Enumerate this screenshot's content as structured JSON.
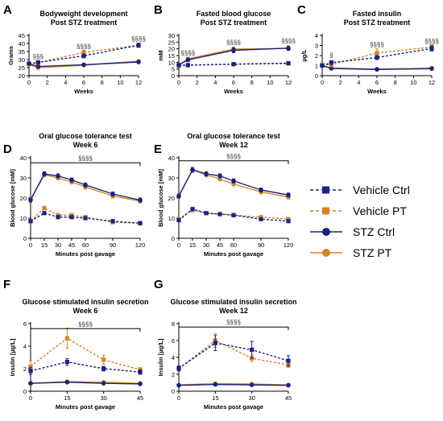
{
  "legend": {
    "entries": [
      {
        "name": "Vehicle Ctrl",
        "color": "#1a237e",
        "marker": "square",
        "dashed": true
      },
      {
        "name": "Vehicle PT",
        "color": "#d4862a",
        "marker": "square",
        "dashed": true
      },
      {
        "name": "STZ Ctrl",
        "color": "#1a237e",
        "marker": "circle",
        "dashed": false
      },
      {
        "name": "STZ PT",
        "color": "#d4862a",
        "marker": "circle",
        "dashed": false
      }
    ]
  },
  "chart_data": [
    {
      "panel": "A",
      "type": "line",
      "title": [
        "Bodyweight development",
        "Post STZ treatment"
      ],
      "xlabel": "Weeks",
      "ylabel": "Grams",
      "xlim": [
        0,
        12
      ],
      "ylim": [
        20,
        45
      ],
      "xticks": [
        0,
        2,
        4,
        6,
        8,
        10,
        12
      ],
      "yticks": [
        20,
        25,
        30,
        35,
        40,
        45
      ],
      "x": [
        0,
        1,
        6,
        12
      ],
      "series": [
        {
          "name": "Vehicle Ctrl",
          "values": [
            27.5,
            28.3,
            32.3,
            38.9
          ],
          "err": [
            0.8,
            0.8,
            1.2,
            1.3
          ]
        },
        {
          "name": "Vehicle PT",
          "values": [
            27.3,
            28.1,
            34.5,
            38.8
          ],
          "err": [
            0.7,
            0.7,
            1.3,
            1.0
          ]
        },
        {
          "name": "STZ Ctrl",
          "values": [
            27.5,
            25.7,
            26.8,
            28.5
          ],
          "err": [
            0.6,
            0.6,
            0.7,
            0.9
          ]
        },
        {
          "name": "STZ PT",
          "values": [
            27.0,
            24.9,
            26.5,
            29.0
          ],
          "err": [
            0.6,
            0.6,
            0.7,
            0.9
          ]
        }
      ],
      "annotations": [
        {
          "text": "§§§",
          "x": 1,
          "y": 30.5
        },
        {
          "text": "§§§§",
          "x": 6,
          "y": 36.8
        },
        {
          "text": "§§§§",
          "x": 12,
          "y": 41.5
        }
      ]
    },
    {
      "panel": "B",
      "type": "line",
      "title": [
        "Fasted blood glucose",
        "Post STZ treatment"
      ],
      "xlabel": "Weeks",
      "ylabel": "mM",
      "xlim": [
        0,
        12
      ],
      "ylim": [
        0,
        30
      ],
      "xticks": [
        0,
        2,
        4,
        6,
        8,
        10,
        12
      ],
      "yticks": [
        0,
        5,
        10,
        15,
        20,
        25,
        30
      ],
      "x": [
        0,
        1,
        6,
        12
      ],
      "series": [
        {
          "name": "Vehicle Ctrl",
          "values": [
            7.8,
            7.9,
            8.6,
            9.3
          ],
          "err": [
            0.3,
            0.3,
            0.3,
            0.4
          ]
        },
        {
          "name": "Vehicle PT",
          "values": [
            7.5,
            7.7,
            8.5,
            9.0
          ],
          "err": [
            0.3,
            0.3,
            0.3,
            0.4
          ]
        },
        {
          "name": "STZ Ctrl",
          "values": [
            8.0,
            11.8,
            18.9,
            20.5
          ],
          "err": [
            0.4,
            1.3,
            1.8,
            1.6
          ]
        },
        {
          "name": "STZ PT",
          "values": [
            8.0,
            12.5,
            19.8,
            20.3
          ],
          "err": [
            0.4,
            1.3,
            1.6,
            1.6
          ]
        }
      ],
      "annotations": [
        {
          "text": "§§§§",
          "x": 1,
          "y": 15.2
        },
        {
          "text": "§§§§",
          "x": 6,
          "y": 23.2
        },
        {
          "text": "§§§§",
          "x": 12,
          "y": 24.2
        }
      ]
    },
    {
      "panel": "C",
      "type": "line",
      "title": [
        "Fasted insulin",
        "Post STZ treatment"
      ],
      "xlabel": "Weeks",
      "ylabel": "µg/L",
      "xlim": [
        0,
        12
      ],
      "ylim": [
        0,
        4
      ],
      "xticks": [
        0,
        2,
        4,
        6,
        8,
        10,
        12
      ],
      "yticks": [
        0,
        1,
        2,
        3,
        4
      ],
      "x": [
        0,
        1,
        6,
        12
      ],
      "series": [
        {
          "name": "Vehicle Ctrl",
          "values": [
            1.0,
            1.3,
            1.8,
            2.7
          ],
          "err": [
            0.15,
            0.2,
            0.2,
            0.25
          ]
        },
        {
          "name": "Vehicle PT",
          "values": [
            1.1,
            1.1,
            2.25,
            2.85
          ],
          "err": [
            0.15,
            0.2,
            0.4,
            0.25
          ]
        },
        {
          "name": "STZ Ctrl",
          "values": [
            1.0,
            0.72,
            0.62,
            0.7
          ],
          "err": [
            0.05,
            0.05,
            0.05,
            0.05
          ]
        },
        {
          "name": "STZ PT",
          "values": [
            1.05,
            0.75,
            0.65,
            0.75
          ],
          "err": [
            0.05,
            0.05,
            0.05,
            0.05
          ]
        }
      ],
      "annotations": [
        {
          "text": "§",
          "x": 1,
          "y": 1.8
        },
        {
          "text": "§§§§",
          "x": 6,
          "y": 2.9
        },
        {
          "text": "§§§§",
          "x": 12,
          "y": 3.2
        }
      ]
    },
    {
      "panel": "D",
      "type": "line",
      "title": [
        "Oral glucose tolerance test",
        "Week 6"
      ],
      "xlabel": "Minutes post gavage",
      "ylabel": "Blood glucose [mM]",
      "xlim": [
        0,
        120
      ],
      "ylim": [
        0,
        40
      ],
      "xticks": [
        0,
        15,
        30,
        45,
        60,
        90,
        120
      ],
      "yticks": [
        0,
        10,
        20,
        30,
        40
      ],
      "x": [
        0,
        15,
        30,
        45,
        60,
        90,
        120
      ],
      "series": [
        {
          "name": "Vehicle Ctrl",
          "values": [
            8.5,
            12.5,
            10.5,
            10.5,
            10.0,
            8.5,
            7.5
          ],
          "err": [
            0.5,
            0.7,
            0.6,
            0.6,
            0.5,
            0.5,
            0.4
          ]
        },
        {
          "name": "Vehicle PT",
          "values": [
            8.5,
            15.0,
            11.5,
            11.5,
            10.5,
            8.0,
            7.5
          ],
          "err": [
            0.5,
            0.9,
            0.6,
            0.6,
            0.5,
            0.5,
            0.4
          ]
        },
        {
          "name": "STZ Ctrl",
          "values": [
            19.0,
            32.0,
            31.0,
            29.0,
            26.5,
            22.0,
            19.0
          ],
          "err": [
            1.0,
            1.0,
            1.0,
            1.0,
            1.0,
            1.0,
            1.0
          ]
        },
        {
          "name": "STZ PT",
          "values": [
            19.5,
            31.5,
            30.0,
            28.0,
            25.5,
            21.0,
            18.5
          ],
          "err": [
            1.0,
            1.0,
            1.0,
            1.0,
            1.0,
            1.0,
            1.0
          ]
        }
      ],
      "bracket": {
        "text": "§§§§",
        "x": [
          0,
          120
        ],
        "y": 37.5
      }
    },
    {
      "panel": "E",
      "type": "line",
      "title": [
        "Oral glucose tolerance test",
        "Week 12"
      ],
      "xlabel": "Minutes post gavage",
      "ylabel": "Blood glucose [mM]",
      "xlim": [
        0,
        120
      ],
      "ylim": [
        0,
        40
      ],
      "xticks": [
        0,
        15,
        30,
        45,
        60,
        90,
        120
      ],
      "yticks": [
        0,
        10,
        20,
        30,
        40
      ],
      "x": [
        0,
        15,
        30,
        45,
        60,
        90,
        120
      ],
      "series": [
        {
          "name": "Vehicle Ctrl",
          "values": [
            9.0,
            14.5,
            12.5,
            12.0,
            11.5,
            9.5,
            8.5
          ],
          "err": [
            0.5,
            0.8,
            0.6,
            0.6,
            0.6,
            0.5,
            0.5
          ]
        },
        {
          "name": "Vehicle PT",
          "values": [
            9.5,
            14.0,
            12.5,
            12.0,
            11.5,
            10.5,
            9.5
          ],
          "err": [
            0.5,
            0.8,
            0.6,
            0.6,
            0.6,
            0.5,
            0.5
          ]
        },
        {
          "name": "STZ Ctrl",
          "values": [
            21.0,
            34.0,
            32.0,
            31.0,
            28.5,
            24.0,
            21.5
          ],
          "err": [
            1.0,
            1.2,
            1.0,
            1.0,
            1.0,
            1.0,
            1.0
          ]
        },
        {
          "name": "STZ PT",
          "values": [
            21.0,
            34.0,
            31.5,
            29.5,
            27.0,
            23.0,
            20.5
          ],
          "err": [
            1.0,
            1.2,
            1.0,
            1.0,
            1.0,
            1.0,
            1.0
          ]
        }
      ],
      "bracket": {
        "text": "§§§§",
        "x": [
          0,
          120
        ],
        "y": 38.5
      }
    },
    {
      "panel": "F",
      "type": "line",
      "title": [
        "Glucose stimulated insulin secretion",
        "Week 6"
      ],
      "xlabel": "Minutes post gavage",
      "ylabel": "Insulin [µg/L]",
      "xlim": [
        0,
        45
      ],
      "ylim": [
        0,
        6
      ],
      "xticks": [
        0,
        15,
        30,
        45
      ],
      "yticks": [
        0,
        2,
        4,
        6
      ],
      "x": [
        0,
        15,
        30,
        45
      ],
      "series": [
        {
          "name": "Vehicle Ctrl",
          "values": [
            1.8,
            2.6,
            2.0,
            1.7
          ],
          "err": [
            0.3,
            0.3,
            0.2,
            0.2
          ]
        },
        {
          "name": "Vehicle PT",
          "values": [
            2.2,
            4.7,
            2.8,
            1.9
          ],
          "err": [
            0.5,
            0.9,
            0.4,
            0.2
          ]
        },
        {
          "name": "STZ Ctrl",
          "values": [
            0.7,
            0.8,
            0.7,
            0.65
          ],
          "err": [
            0.05,
            0.05,
            0.05,
            0.05
          ]
        },
        {
          "name": "STZ PT",
          "values": [
            0.7,
            0.85,
            0.8,
            0.7
          ],
          "err": [
            0.05,
            0.05,
            0.05,
            0.05
          ]
        }
      ],
      "bracket": {
        "text": "§§§§",
        "x": [
          0,
          45
        ],
        "y": 5.55
      }
    },
    {
      "panel": "G",
      "type": "line",
      "title": [
        "Glucose stimulated insulin secretion",
        "Week 12"
      ],
      "xlabel": "Minutes post gavage",
      "ylabel": "Insulin [µg/L]",
      "xlim": [
        0,
        45
      ],
      "ylim": [
        0,
        8
      ],
      "xticks": [
        0,
        15,
        30,
        45
      ],
      "yticks": [
        0,
        2,
        4,
        6,
        8
      ],
      "x": [
        0,
        15,
        30,
        45
      ],
      "series": [
        {
          "name": "Vehicle Ctrl",
          "values": [
            2.7,
            5.7,
            4.9,
            3.6
          ],
          "err": [
            0.3,
            0.9,
            1.0,
            0.6
          ]
        },
        {
          "name": "Vehicle PT",
          "values": [
            2.7,
            6.0,
            3.9,
            3.1
          ],
          "err": [
            0.3,
            0.8,
            0.4,
            0.3
          ]
        },
        {
          "name": "STZ Ctrl",
          "values": [
            0.7,
            0.8,
            0.75,
            0.7
          ],
          "err": [
            0.05,
            0.05,
            0.05,
            0.05
          ]
        },
        {
          "name": "STZ PT",
          "values": [
            0.75,
            0.9,
            0.85,
            0.75
          ],
          "err": [
            0.05,
            0.05,
            0.05,
            0.05
          ]
        }
      ],
      "bracket": {
        "text": "§§§§",
        "x": [
          0,
          45
        ],
        "y": 7.6
      }
    }
  ]
}
